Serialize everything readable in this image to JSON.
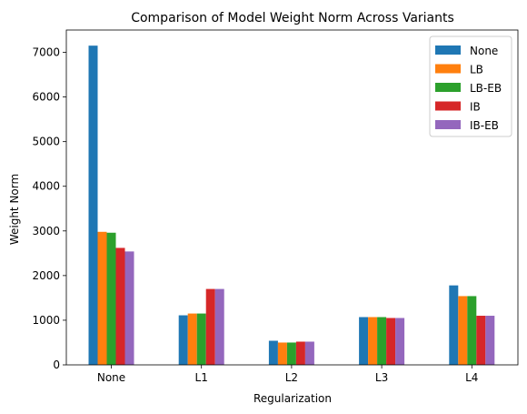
{
  "chart_data": {
    "type": "bar",
    "title": "Comparison of Model Weight Norm Across Variants",
    "xlabel": "Regularization",
    "ylabel": "Weight Norm",
    "categories": [
      "None",
      "L1",
      "L2",
      "L3",
      "L4"
    ],
    "ylim": [
      0,
      7500
    ],
    "yticks": [
      0,
      1000,
      2000,
      3000,
      4000,
      5000,
      6000,
      7000
    ],
    "grid": false,
    "legend_position": "top-right",
    "series": [
      {
        "name": "None",
        "color": "#1f77b4",
        "values": [
          7150,
          1110,
          540,
          1070,
          1780
        ]
      },
      {
        "name": "LB",
        "color": "#ff7f0e",
        "values": [
          2980,
          1150,
          500,
          1070,
          1540
        ]
      },
      {
        "name": "LB-EB",
        "color": "#2ca02c",
        "values": [
          2960,
          1150,
          500,
          1070,
          1540
        ]
      },
      {
        "name": "IB",
        "color": "#d62728",
        "values": [
          2620,
          1700,
          520,
          1050,
          1100
        ]
      },
      {
        "name": "IB-EB",
        "color": "#9467bd",
        "values": [
          2540,
          1700,
          520,
          1050,
          1100
        ]
      }
    ]
  }
}
